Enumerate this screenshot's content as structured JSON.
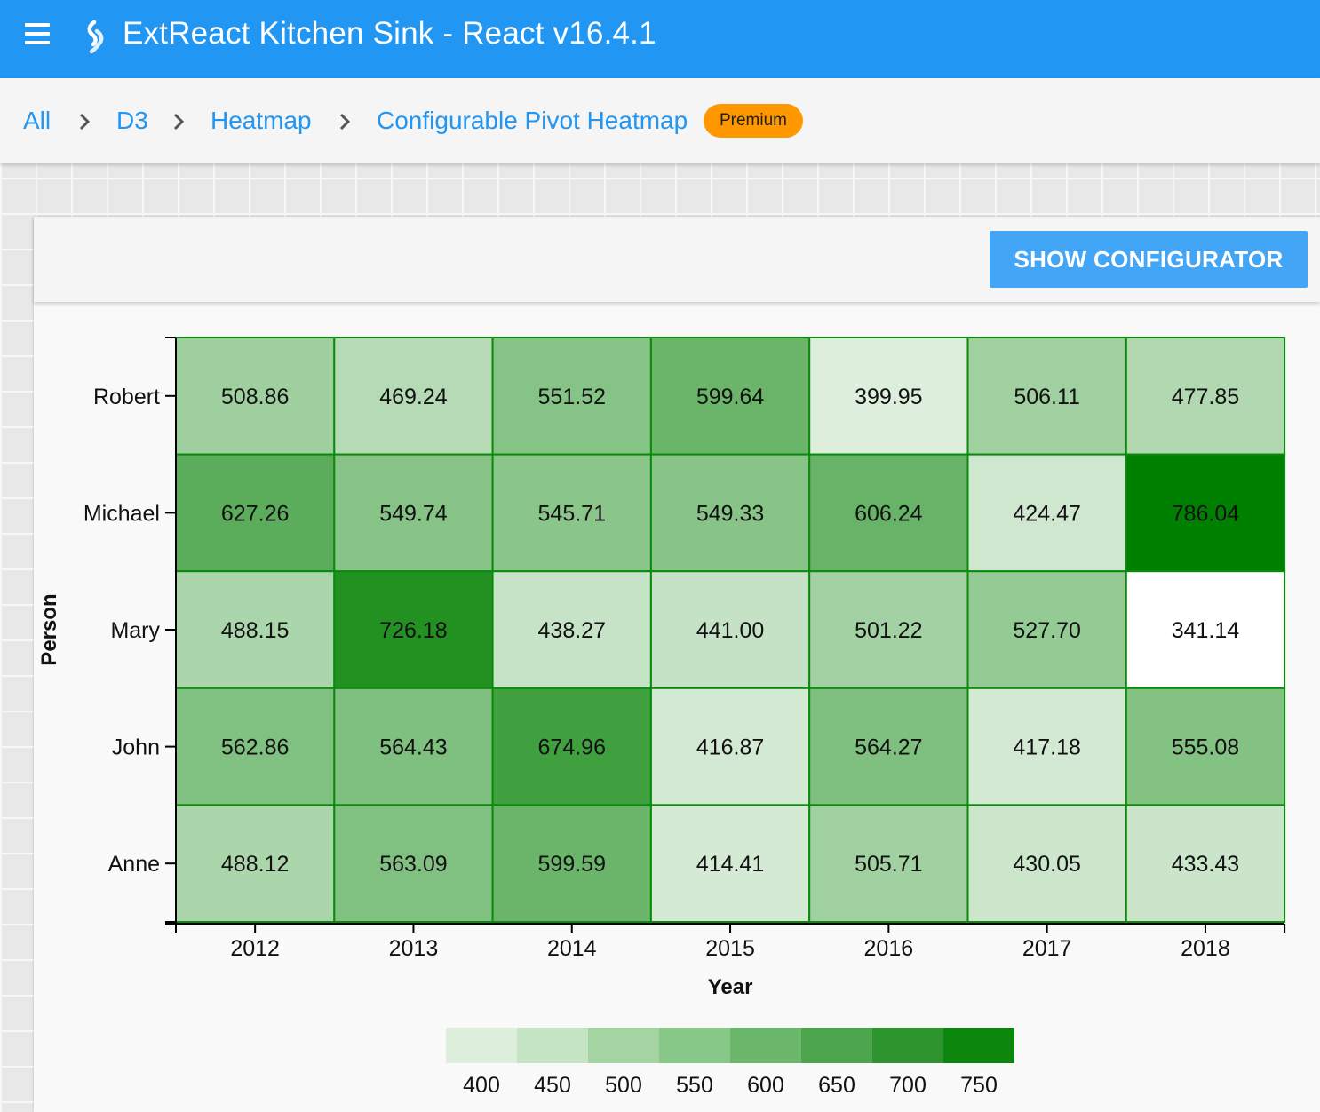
{
  "app": {
    "title": "ExtReact Kitchen Sink - React v16.4.1"
  },
  "breadcrumb": {
    "items": [
      "All",
      "D3",
      "Heatmap",
      "Configurable Pivot Heatmap"
    ],
    "badge": "Premium"
  },
  "toolbar": {
    "configurator_label": "SHOW CONFIGURATOR"
  },
  "icons": {
    "menu": "hamburger-menu-icon",
    "logo": "extreact-logo-icon",
    "separator": "chevron-right-icon"
  },
  "colors": {
    "header": "#2196f3",
    "link": "#2196f3",
    "badge": "#ff9800",
    "button": "#42a5f5",
    "scale_low": "#ffffff",
    "scale_high": "#008000"
  },
  "chart_data": {
    "type": "heatmap",
    "xlabel": "Year",
    "ylabel": "Person",
    "x": [
      "2012",
      "2013",
      "2014",
      "2015",
      "2016",
      "2017",
      "2018"
    ],
    "y": [
      "Robert",
      "Michael",
      "Mary",
      "John",
      "Anne"
    ],
    "values": [
      [
        508.86,
        469.24,
        551.52,
        599.64,
        399.95,
        506.11,
        477.85
      ],
      [
        627.26,
        549.74,
        545.71,
        549.33,
        606.24,
        424.47,
        786.04
      ],
      [
        488.15,
        726.18,
        438.27,
        441.0,
        501.22,
        527.7,
        341.14
      ],
      [
        562.86,
        564.43,
        674.96,
        416.87,
        564.27,
        417.18,
        555.08
      ],
      [
        488.12,
        563.09,
        599.59,
        414.41,
        505.71,
        430.05,
        433.43
      ]
    ],
    "color_range": [
      341.14,
      786.04
    ],
    "legend": {
      "ticks": [
        "400",
        "450",
        "500",
        "550",
        "600",
        "650",
        "700",
        "750"
      ],
      "values": [
        400,
        450,
        500,
        550,
        600,
        650,
        700,
        750
      ],
      "colors": [
        "#ddeedd",
        "#c4e4c4",
        "#a4d4a2",
        "#88c888",
        "#6bb76b",
        "#4da54d",
        "#2e952e",
        "#0c860c"
      ]
    }
  }
}
